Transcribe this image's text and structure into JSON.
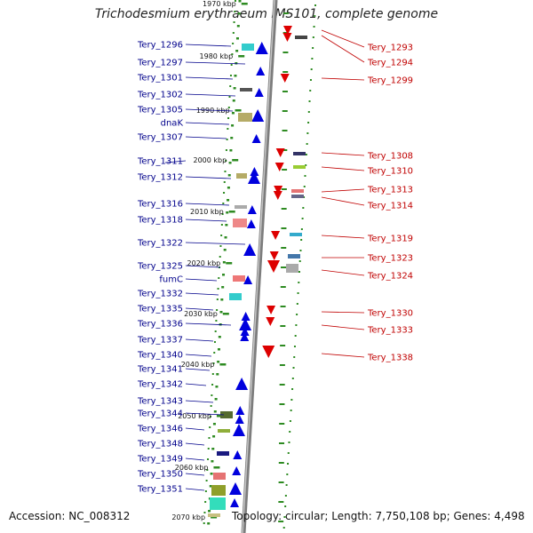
{
  "title": "Trichodesmium erythraeum IMS101, complete genome",
  "footer": {
    "accession": "Accession: NC_008312",
    "topology": "Topology: circular; Length: 7,750,108 bp; Genes: 4,498"
  },
  "colors": {
    "left_label": "#00008b",
    "right_label": "#c00000",
    "backbone": "#9a9a9a",
    "scale_dash": "#2e8b22",
    "forward_strand": "#0000dd",
    "reverse_strand": "#dd0000"
  },
  "scale_ticks": [
    "1970 kbp",
    "1980 kbp",
    "1990 kbp",
    "2000 kbp",
    "2010 kbp",
    "2020 kbp",
    "2030 kbp",
    "2040 kbp",
    "2050 kbp",
    "2060 kbp",
    "2070 kbp"
  ],
  "left_genes": [
    "Tery_1296",
    "Tery_1297",
    "Tery_1301",
    "Tery_1302",
    "Tery_1305",
    "dnaK",
    "Tery_1307",
    "Tery_1311",
    "Tery_1312",
    "Tery_1316",
    "Tery_1318",
    "Tery_1322",
    "Tery_1325",
    "fumC",
    "Tery_1332",
    "Tery_1335",
    "Tery_1336",
    "Tery_1337",
    "Tery_1340",
    "Tery_1341",
    "Tery_1342",
    "Tery_1343",
    "Tery_1344",
    "Tery_1346",
    "Tery_1348",
    "Tery_1349",
    "Tery_1350",
    "Tery_1351"
  ],
  "right_genes": [
    "Tery_1293",
    "Tery_1294",
    "Tery_1299",
    "Tery_1308",
    "Tery_1310",
    "Tery_1313",
    "Tery_1314",
    "Tery_1319",
    "Tery_1323",
    "Tery_1324",
    "Tery_1330",
    "Tery_1333",
    "Tery_1338"
  ]
}
